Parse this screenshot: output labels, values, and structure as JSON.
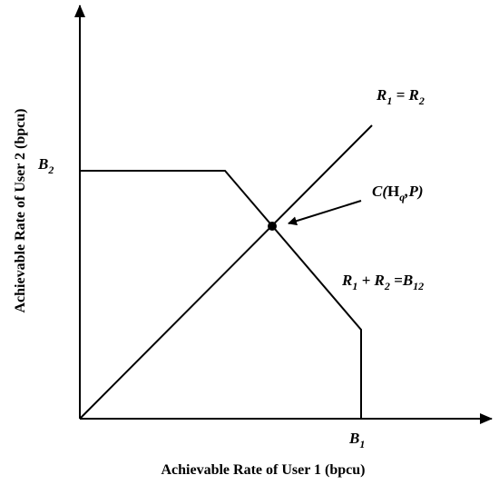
{
  "axes": {
    "x_label": "Achievable Rate of User 1 (bpcu)",
    "y_label": "Achievable Rate of User 2 (bpcu)"
  },
  "labels": {
    "y_corner": [
      "B",
      "2"
    ],
    "x_corner": [
      "B",
      "1"
    ],
    "equal_rates": [
      "R",
      "1",
      " = ",
      "R",
      "2"
    ],
    "operating_point": [
      "C(",
      "H",
      "q",
      ",",
      "P",
      ")"
    ],
    "sum_rate": [
      "R",
      "1",
      " + ",
      "R",
      "2",
      " =",
      "B",
      "12"
    ]
  }
}
